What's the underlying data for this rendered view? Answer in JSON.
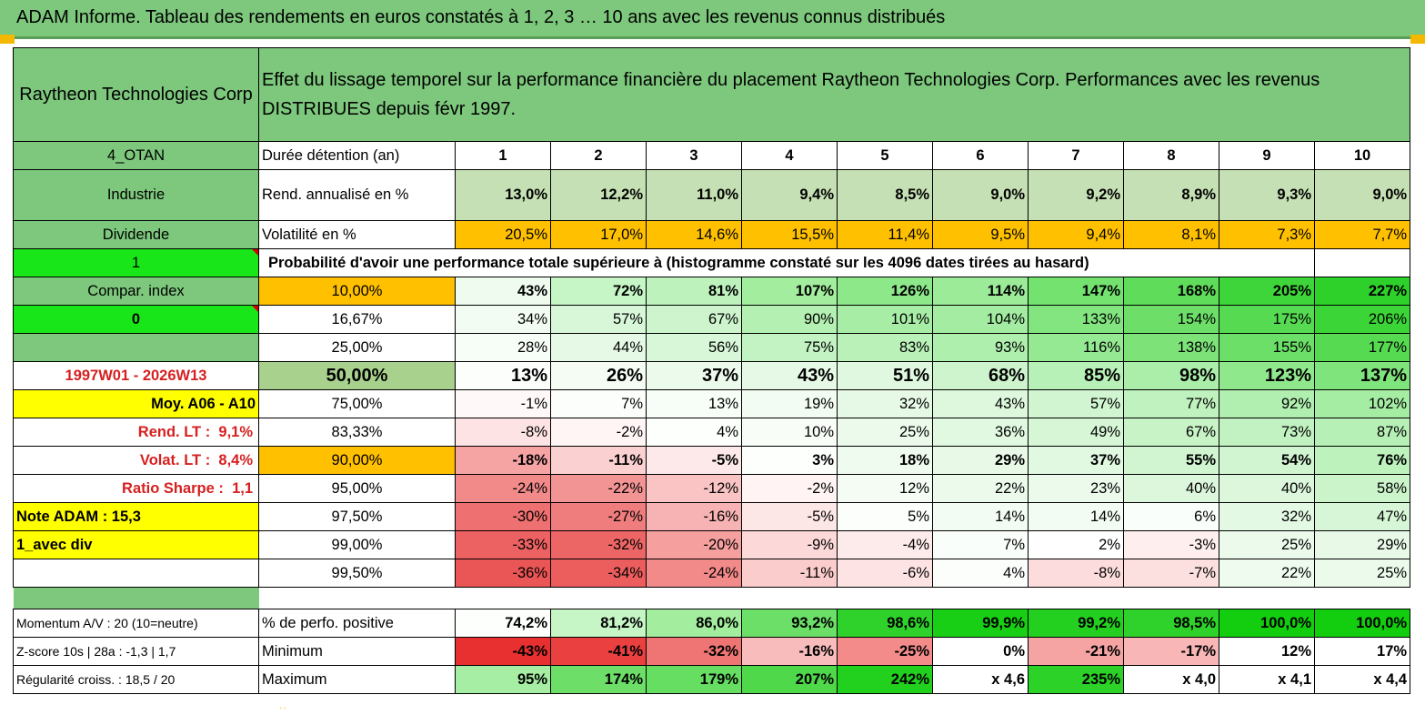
{
  "title": "ADAM Informe. Tableau des rendements en euros constatés à 1, 2, 3 … 10 ans avec les revenus connus distribués",
  "header": {
    "company": "Raytheon Technologies Corp",
    "description": "Effet du lissage temporel sur la performance financière du placement Raytheon Technologies Corp. Performances avec les revenus DISTRIBUES depuis févr 1997."
  },
  "side": {
    "code": "4_OTAN",
    "sector": "Industrie",
    "type": "Dividende",
    "flag1": "1",
    "compar_label": "Compar. index",
    "flag0": "0",
    "period": "1997W01 - 2026W13",
    "moy": "Moy. A06 - A10",
    "rend_lt_label": "Rend. LT :",
    "rend_lt_value": "9,1%",
    "volat_lt_label": "Volat. LT :",
    "volat_lt_value": "8,4%",
    "sharpe_label": "Ratio Sharpe :",
    "sharpe_value": "1,1",
    "note": "Note ADAM : 15,3",
    "avec_div": "1_avec div",
    "momentum": "Momentum A/V : 20 (10=neutre)",
    "zscore": "Z-score 10s | 28a : -1,3 | 1,7",
    "regularite": "Régularité croiss. : 18,5 / 20"
  },
  "labels": {
    "duree": "Durée détention (an)",
    "rend": "Rend. annualisé en %",
    "volat": "Volatilité en %",
    "proba": "Probabilité d'avoir une performance totale supérieure à (histogramme constaté sur les 4096 dates tirées au hasard)",
    "positive": "% de perfo. positive",
    "minimum": "Minimum",
    "maximum": "Maximum"
  },
  "years": [
    "1",
    "2",
    "3",
    "4",
    "5",
    "6",
    "7",
    "8",
    "9",
    "10"
  ],
  "rend": [
    "13,0%",
    "12,2%",
    "11,0%",
    "9,4%",
    "8,5%",
    "9,0%",
    "9,2%",
    "8,9%",
    "9,3%",
    "9,0%"
  ],
  "volat": [
    "20,5%",
    "17,0%",
    "14,6%",
    "15,5%",
    "11,4%",
    "9,5%",
    "9,4%",
    "8,1%",
    "7,3%",
    "7,7%"
  ],
  "prob_rows": [
    {
      "threshold": "10,00%",
      "values": [
        "43%",
        "72%",
        "81%",
        "107%",
        "126%",
        "114%",
        "147%",
        "168%",
        "205%",
        "227%"
      ],
      "colors": [
        "#eefbee",
        "#c6f5c6",
        "#bdf2bd",
        "#a3ee9e",
        "#8de88a",
        "#9beb98",
        "#73e26f",
        "#5fdc5a",
        "#3dd53a",
        "#2dd12a"
      ]
    },
    {
      "threshold": "16,67%",
      "values": [
        "34%",
        "57%",
        "67%",
        "90%",
        "101%",
        "104%",
        "133%",
        "154%",
        "175%",
        "206%"
      ],
      "colors": [
        "#f3fcf3",
        "#d8f7d8",
        "#cdf4cd",
        "#b3f0b1",
        "#a8ed a6",
        "#a3ec a1",
        "#82e57f",
        "#6ddf69",
        "#56da52",
        "#3bd537"
      ]
    },
    {
      "threshold": "25,00%",
      "values": [
        "28%",
        "44%",
        "56%",
        "75%",
        "83%",
        "93%",
        "116%",
        "138%",
        "155%",
        "177%"
      ],
      "colors": [
        "#f7fdf7",
        "#e6f9e6",
        "#d8f7d8",
        "#c3f3c2",
        "#baf1b9",
        "#afef ad",
        "#96e993",
        "#7de379",
        "#6bdf67",
        "#56da52"
      ]
    },
    {
      "threshold": "50,00%",
      "values": [
        "13%",
        "26%",
        "37%",
        "43%",
        "51%",
        "68%",
        "85%",
        "98%",
        "123%",
        "137%"
      ],
      "colors": [
        "#fcfefc",
        "#f4fcf4",
        "#ecfaec",
        "#e6f9e6",
        "#dff8df",
        "#cdf4cd",
        "#b8f1b7",
        "#abee a9",
        "#90e88d",
        "#80e47d"
      ]
    },
    {
      "threshold": "75,00%",
      "values": [
        "-1%",
        "7%",
        "13%",
        "19%",
        "32%",
        "43%",
        "57%",
        "77%",
        "92%",
        "102%"
      ],
      "colors": [
        "#fff8f8",
        "#fbfefb",
        "#f7fdf7",
        "#f2fcf2",
        "#e6f9e6",
        "#ddf8dd",
        "#d0f5d0",
        "#bff2be",
        "#b1efb0",
        "#a6ed a4"
      ]
    },
    {
      "threshold": "83,33%",
      "values": [
        "-8%",
        "-2%",
        "4%",
        "10%",
        "25%",
        "36%",
        "49%",
        "67%",
        "73%",
        "87%"
      ],
      "colors": [
        "#fde3e3",
        "#fff5f5",
        "#fdfffd",
        "#f8fdf8",
        "#ebfaeb",
        "#e1f8e1",
        "#d6f6d6",
        "#c8f3c7",
        "#c2f2c1",
        "#b7f0b6"
      ]
    },
    {
      "threshold": "90,00%",
      "values": [
        "-18%",
        "-11%",
        "-5%",
        "3%",
        "18%",
        "29%",
        "37%",
        "55%",
        "54%",
        "76%"
      ],
      "colors": [
        "#f5a3a3",
        "#fbd0d0",
        "#fde9e9",
        "#fdfffd",
        "#f0fbf0",
        "#e8f9e8",
        "#e1f8e1",
        "#d0f5d0",
        "#d1f5d1",
        "#bdf2bc"
      ]
    },
    {
      "threshold": "95,00%",
      "values": [
        "-24%",
        "-22%",
        "-12%",
        "-2%",
        "12%",
        "22%",
        "23%",
        "40%",
        "40%",
        "58%"
      ],
      "colors": [
        "#f28a8a",
        "#f39494",
        "#fac4c4",
        "#fff3f3",
        "#f4fcf4",
        "#ecfaec",
        "#ebfaeb",
        "#dcf7dc",
        "#dcf7dc",
        "#cbf4ca"
      ]
    },
    {
      "threshold": "97,50%",
      "values": [
        "-30%",
        "-27%",
        "-16%",
        "-5%",
        "5%",
        "14%",
        "14%",
        "6%",
        "32%",
        "47%"
      ],
      "colors": [
        "#ee7070",
        "#f07d7d",
        "#f7b3b3",
        "#fde6e6",
        "#fbfefb",
        "#f3fcf3",
        "#f3fcf3",
        "#fafefa",
        "#e4f9e4",
        "#d7f6d7"
      ]
    },
    {
      "threshold": "99,00%",
      "values": [
        "-33%",
        "-32%",
        "-20%",
        "-9%",
        "-4%",
        "7%",
        "2%",
        "-3%",
        "25%",
        "29%"
      ],
      "colors": [
        "#ec6161",
        "#ed6666",
        "#f59f9f",
        "#fcd8d8",
        "#fdeaea",
        "#fafefa",
        "#fefffe",
        "#feeeee",
        "#ebfaeb",
        "#e8f9e8"
      ]
    },
    {
      "threshold": "99,50%",
      "values": [
        "-36%",
        "-34%",
        "-24%",
        "-11%",
        "-6%",
        "4%",
        "-8%",
        "-7%",
        "22%",
        "25%"
      ],
      "colors": [
        "#ea5555",
        "#ec5e5e",
        "#f28a8a",
        "#fbcccc",
        "#fde3e3",
        "#fcfefc",
        "#fcdcdc",
        "#fce0e0",
        "#eefbee",
        "#ebfaeb"
      ]
    }
  ],
  "positive": {
    "values": [
      "74,2%",
      "81,2%",
      "86,0%",
      "93,2%",
      "98,6%",
      "99,9%",
      "99,2%",
      "98,5%",
      "100,0%",
      "100,0%"
    ],
    "colors": [
      "#fcfffc",
      "#c6f5c6",
      "#a3ee9e",
      "#6bdf67",
      "#2fd22b",
      "#19cf15",
      "#23d01f",
      "#2fd22b",
      "#13cd0f",
      "#13cd0f"
    ]
  },
  "minimum": {
    "values": [
      "-43%",
      "-41%",
      "-32%",
      "-16%",
      "-25%",
      "0%",
      "-21%",
      "-17%",
      "12%",
      "17%"
    ],
    "colors": [
      "#e83030",
      "#ea4040",
      "#ef7575",
      "#f9bcbc",
      "#f38b8b",
      "#ffffff",
      "#f5a3a3",
      "#f8b6b6",
      "#ffffff",
      "#ffffff"
    ]
  },
  "maximum": {
    "values": [
      "95%",
      "174%",
      "179%",
      "207%",
      "242%",
      "x 4,6",
      "235%",
      "x 4,0",
      "x 4,1",
      "x 4,4"
    ],
    "colors": [
      "#a5ee a3",
      "#6ddf69",
      "#66de62",
      "#4ed84a",
      "#22d01e",
      "#ffffff",
      "#2cd228",
      "#ffffff",
      "#ffffff",
      "#ffffff"
    ]
  },
  "colors": {
    "header_green": "#7dc87d",
    "light_green": "#a9d18e",
    "yellow": "#ffff00",
    "orange": "#ffc000",
    "bright_green": "#19e619",
    "red_text": "#d62020"
  }
}
